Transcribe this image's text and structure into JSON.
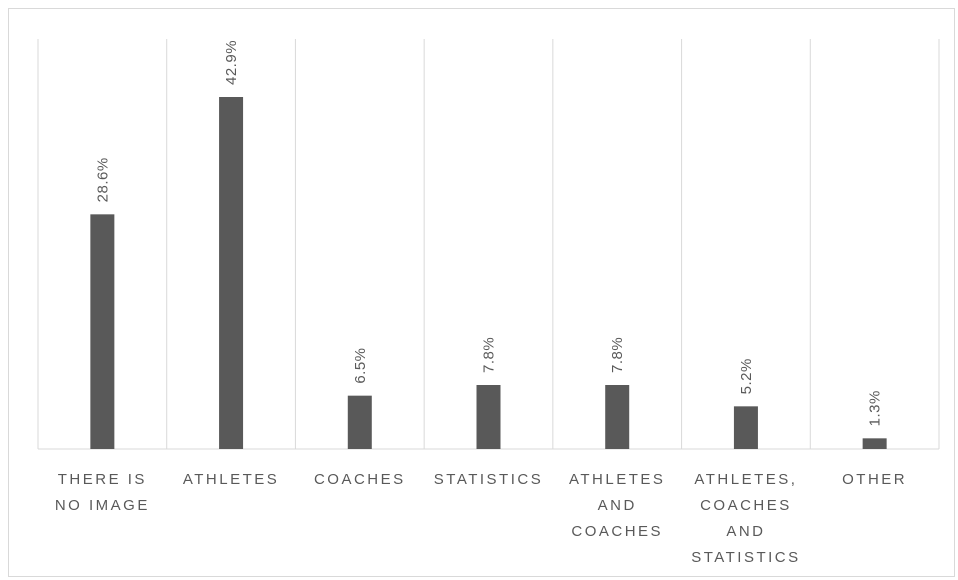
{
  "chart_data": {
    "type": "bar",
    "categories": [
      [
        "THERE IS",
        "NO IMAGE"
      ],
      [
        "ATHLETES"
      ],
      [
        "COACHES"
      ],
      [
        "STATISTICS"
      ],
      [
        "ATHLETES",
        "AND",
        "COACHES"
      ],
      [
        "ATHLETES,",
        "COACHES",
        "AND",
        "STATISTICS"
      ],
      [
        "OTHER"
      ]
    ],
    "values": [
      28.6,
      42.9,
      6.5,
      7.8,
      7.8,
      5.2,
      1.3
    ],
    "data_labels": [
      "28.6%",
      "42.9%",
      "6.5%",
      "7.8%",
      "7.8%",
      "5.2%",
      "1.3%"
    ],
    "title": "",
    "xlabel": "",
    "ylabel": "",
    "ylim": [
      0,
      50
    ],
    "grid": "vertical category separators",
    "legend": "none",
    "bar_color": "#595959",
    "grid_color": "#d9d9d9",
    "label_color": "#595959"
  }
}
